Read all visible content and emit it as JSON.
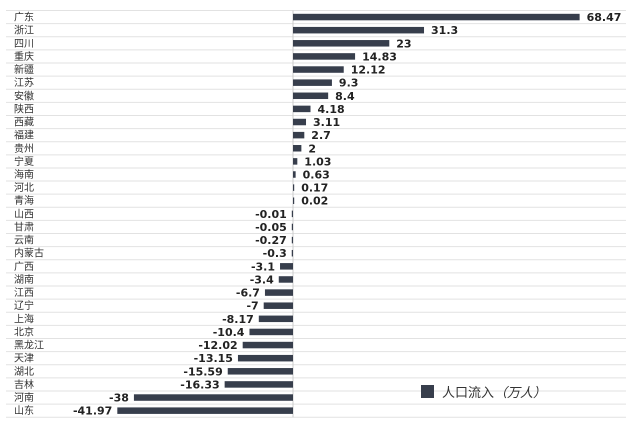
{
  "chart_data": {
    "type": "bar",
    "orientation": "horizontal",
    "categories": [
      "广东",
      "浙江",
      "四川",
      "重庆",
      "新疆",
      "江苏",
      "安徽",
      "陕西",
      "西藏",
      "福建",
      "贵州",
      "宁夏",
      "海南",
      "河北",
      "青海",
      "山西",
      "甘肃",
      "云南",
      "内蒙古",
      "广西",
      "湖南",
      "江西",
      "辽宁",
      "上海",
      "北京",
      "黑龙江",
      "天津",
      "湖北",
      "吉林",
      "河南",
      "山东"
    ],
    "values": [
      68.47,
      31.3,
      23,
      14.83,
      12.12,
      9.3,
      8.4,
      4.18,
      3.11,
      2.7,
      2,
      1.03,
      0.63,
      0.17,
      0.02,
      -0.01,
      -0.05,
      -0.27,
      -0.3,
      -3.1,
      -3.4,
      -6.7,
      -7,
      -8.17,
      -10.4,
      -12.02,
      -13.15,
      -15.59,
      -16.33,
      -38,
      -41.97
    ],
    "value_labels": [
      "68.47",
      "31.3",
      "23",
      "14.83",
      "12.12",
      "9.3",
      "8.4",
      "4.18",
      "3.11",
      "2.7",
      "2",
      "1.03",
      "0.63",
      "0.17",
      "0.02",
      "-0.01",
      "-0.05",
      "-0.27",
      "-0.3",
      "-3.1",
      "-3.4",
      "-6.7",
      "-7",
      "-8.17",
      "-10.4",
      "-12.02",
      "-13.15",
      "-15.59",
      "-16.33",
      "-38",
      "-41.97"
    ],
    "series": [
      {
        "name": "人口流入（万人）",
        "color": "#373e4c"
      }
    ],
    "legend": {
      "text": "人口流入",
      "unit": "（万人）",
      "position": "bottom-right"
    },
    "grid": true
  }
}
